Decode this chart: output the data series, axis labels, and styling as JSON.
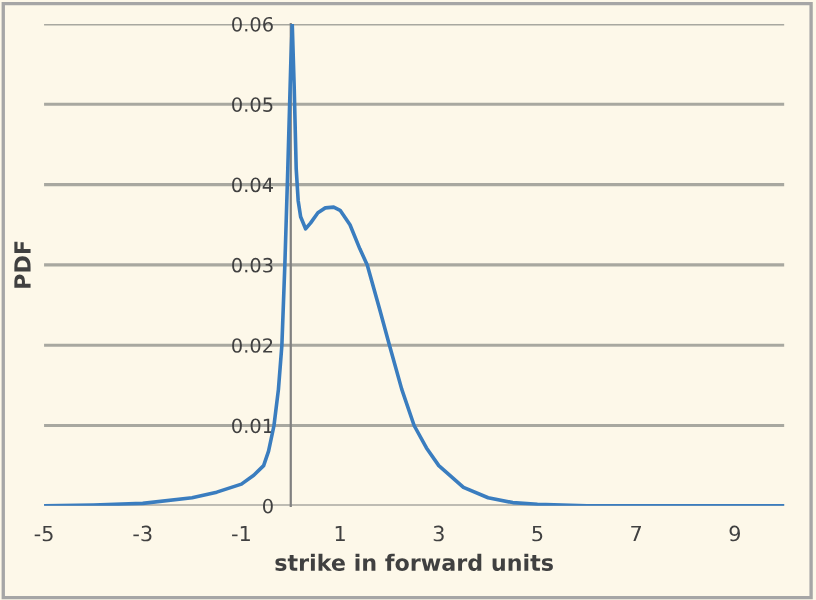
{
  "chart_data": {
    "type": "line",
    "xlabel": "strike in forward units",
    "ylabel": "PDF",
    "x": [
      -5,
      -4,
      -3,
      -2,
      -1.5,
      -1,
      -0.75,
      -0.55,
      -0.45,
      -0.34,
      -0.25,
      -0.18,
      -0.12,
      -0.06,
      0,
      0.03,
      0.07,
      0.11,
      0.15,
      0.2,
      0.3,
      0.4,
      0.55,
      0.7,
      0.87,
      1.0,
      1.2,
      1.4,
      1.55,
      1.8,
      2.0,
      2.25,
      2.5,
      2.75,
      3.0,
      3.5,
      4.0,
      4.5,
      5.0,
      6.0,
      7,
      8,
      9,
      10
    ],
    "series": [
      {
        "color": "#3a7dbf",
        "values": [
          0,
          0.0001,
          0.0003,
          0.001,
          0.0017,
          0.0027,
          0.0038,
          0.005,
          0.0068,
          0.01,
          0.0145,
          0.02,
          0.03,
          0.042,
          0.055,
          0.06,
          0.052,
          0.042,
          0.038,
          0.036,
          0.0345,
          0.0352,
          0.0365,
          0.0371,
          0.0372,
          0.0368,
          0.035,
          0.032,
          0.03,
          0.0245,
          0.02,
          0.0145,
          0.01,
          0.0072,
          0.005,
          0.0023,
          0.001,
          0.0004,
          0.0002,
          0,
          0,
          0,
          0,
          0
        ]
      }
    ],
    "xlim": [
      -5,
      10
    ],
    "xticks": [
      -5,
      -3,
      -1,
      1,
      3,
      5,
      7,
      9
    ],
    "ylim": [
      0,
      0.06
    ],
    "yticks": [
      0,
      0.01,
      0.02,
      0.03,
      0.04,
      0.05,
      0.06
    ],
    "grid": "y",
    "marker": "none",
    "line_style": "solid"
  }
}
